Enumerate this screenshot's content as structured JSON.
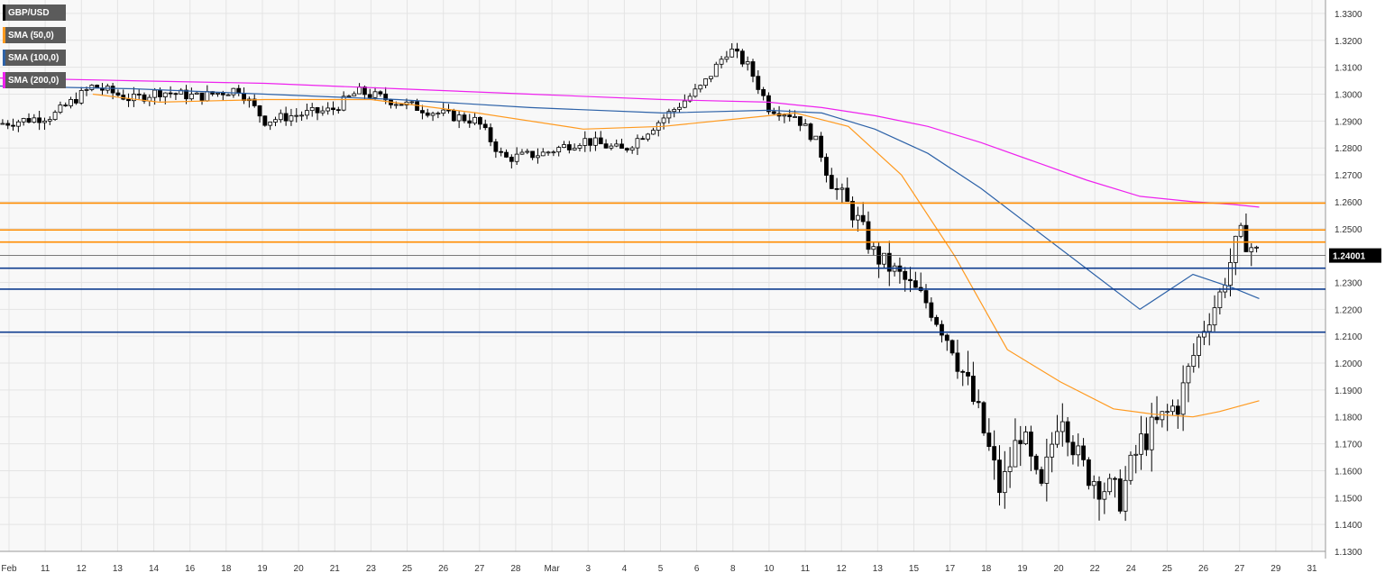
{
  "colors": {
    "background": "#f8f8f8",
    "grid": "#e4e4e4",
    "candle_up": "#ffffff",
    "candle_down": "#000000",
    "sma50": "#ff9a1f",
    "sma100": "#2d62a8",
    "sma200": "#ee22ee",
    "resistance": "#ff8c00",
    "support": "#0f3d8f",
    "price_line": "#555555"
  },
  "legend": [
    {
      "label": "GBP/USD",
      "color": "#000000"
    },
    {
      "label": "SMA (50,0)",
      "color": "#ff9a1f"
    },
    {
      "label": "SMA (100,0)",
      "color": "#2d62a8"
    },
    {
      "label": "SMA (200,0)",
      "color": "#ee22ee"
    }
  ],
  "chart_data": {
    "type": "candlestick",
    "symbol": "GBP/USD",
    "ylim": [
      1.13,
      1.335
    ],
    "y_ticks": [
      "1.1300",
      "1.1400",
      "1.1500",
      "1.1600",
      "1.1700",
      "1.1800",
      "1.1900",
      "1.2000",
      "1.2100",
      "1.2200",
      "1.2300",
      "1.2400",
      "1.2500",
      "1.2600",
      "1.2700",
      "1.2800",
      "1.2900",
      "1.3000",
      "1.3100",
      "1.3200",
      "1.3300"
    ],
    "x_ticks": [
      "Feb",
      "11",
      "12",
      "13",
      "14",
      "16",
      "18",
      "19",
      "20",
      "21",
      "23",
      "25",
      "26",
      "27",
      "28",
      "Mar",
      "3",
      "4",
      "5",
      "6",
      "8",
      "10",
      "11",
      "12",
      "13",
      "15",
      "17",
      "18",
      "19",
      "20",
      "22",
      "24",
      "25",
      "26",
      "27",
      "29",
      "31"
    ],
    "current_price": "1.24001",
    "current_price_value": 1.24,
    "horizontal_levels": {
      "resistance": [
        1.2595,
        1.2495,
        1.245
      ],
      "support": [
        1.2353,
        1.2275,
        1.2115
      ]
    },
    "price_path": [
      [
        0,
        1.289
      ],
      [
        0.04,
        1.292
      ],
      [
        0.07,
        1.303
      ],
      [
        0.1,
        1.298
      ],
      [
        0.12,
        1.301
      ],
      [
        0.15,
        1.299
      ],
      [
        0.18,
        1.302
      ],
      [
        0.2,
        1.29
      ],
      [
        0.22,
        1.292
      ],
      [
        0.25,
        1.294
      ],
      [
        0.27,
        1.301
      ],
      [
        0.3,
        1.297
      ],
      [
        0.33,
        1.293
      ],
      [
        0.36,
        1.29
      ],
      [
        0.38,
        1.276
      ],
      [
        0.41,
        1.278
      ],
      [
        0.44,
        1.283
      ],
      [
        0.47,
        1.279
      ],
      [
        0.49,
        1.287
      ],
      [
        0.51,
        1.295
      ],
      [
        0.53,
        1.303
      ],
      [
        0.55,
        1.317
      ],
      [
        0.565,
        1.31
      ],
      [
        0.58,
        1.295
      ],
      [
        0.6,
        1.292
      ],
      [
        0.615,
        1.283
      ],
      [
        0.63,
        1.265
      ],
      [
        0.645,
        1.255
      ],
      [
        0.66,
        1.24
      ],
      [
        0.68,
        1.232
      ],
      [
        0.7,
        1.222
      ],
      [
        0.72,
        1.205
      ],
      [
        0.74,
        1.178
      ],
      [
        0.755,
        1.152
      ],
      [
        0.77,
        1.175
      ],
      [
        0.785,
        1.15
      ],
      [
        0.8,
        1.185
      ],
      [
        0.815,
        1.162
      ],
      [
        0.83,
        1.155
      ],
      [
        0.845,
        1.15
      ],
      [
        0.86,
        1.17
      ],
      [
        0.875,
        1.178
      ],
      [
        0.89,
        1.186
      ],
      [
        0.905,
        1.21
      ],
      [
        0.92,
        1.225
      ],
      [
        0.935,
        1.248
      ],
      [
        0.95,
        1.24
      ]
    ],
    "sma50": [
      [
        0.07,
        1.3
      ],
      [
        0.12,
        1.297
      ],
      [
        0.2,
        1.298
      ],
      [
        0.28,
        1.298
      ],
      [
        0.36,
        1.293
      ],
      [
        0.44,
        1.287
      ],
      [
        0.5,
        1.288
      ],
      [
        0.56,
        1.291
      ],
      [
        0.6,
        1.293
      ],
      [
        0.64,
        1.288
      ],
      [
        0.68,
        1.27
      ],
      [
        0.72,
        1.24
      ],
      [
        0.76,
        1.205
      ],
      [
        0.8,
        1.193
      ],
      [
        0.84,
        1.183
      ],
      [
        0.87,
        1.181
      ],
      [
        0.9,
        1.18
      ],
      [
        0.92,
        1.182
      ],
      [
        0.95,
        1.186
      ]
    ],
    "sma100": [
      [
        0.0,
        1.303
      ],
      [
        0.1,
        1.302
      ],
      [
        0.2,
        1.3
      ],
      [
        0.3,
        1.298
      ],
      [
        0.4,
        1.295
      ],
      [
        0.5,
        1.293
      ],
      [
        0.58,
        1.294
      ],
      [
        0.62,
        1.293
      ],
      [
        0.66,
        1.287
      ],
      [
        0.7,
        1.278
      ],
      [
        0.74,
        1.265
      ],
      [
        0.78,
        1.25
      ],
      [
        0.82,
        1.235
      ],
      [
        0.86,
        1.22
      ],
      [
        0.9,
        1.233
      ],
      [
        0.93,
        1.228
      ],
      [
        0.95,
        1.224
      ]
    ],
    "sma200": [
      [
        0.0,
        1.306
      ],
      [
        0.1,
        1.305
      ],
      [
        0.2,
        1.304
      ],
      [
        0.3,
        1.302
      ],
      [
        0.4,
        1.3
      ],
      [
        0.5,
        1.298
      ],
      [
        0.58,
        1.297
      ],
      [
        0.62,
        1.295
      ],
      [
        0.66,
        1.292
      ],
      [
        0.7,
        1.288
      ],
      [
        0.74,
        1.282
      ],
      [
        0.78,
        1.275
      ],
      [
        0.82,
        1.268
      ],
      [
        0.86,
        1.262
      ],
      [
        0.9,
        1.26
      ],
      [
        0.93,
        1.259
      ],
      [
        0.95,
        1.258
      ]
    ]
  }
}
